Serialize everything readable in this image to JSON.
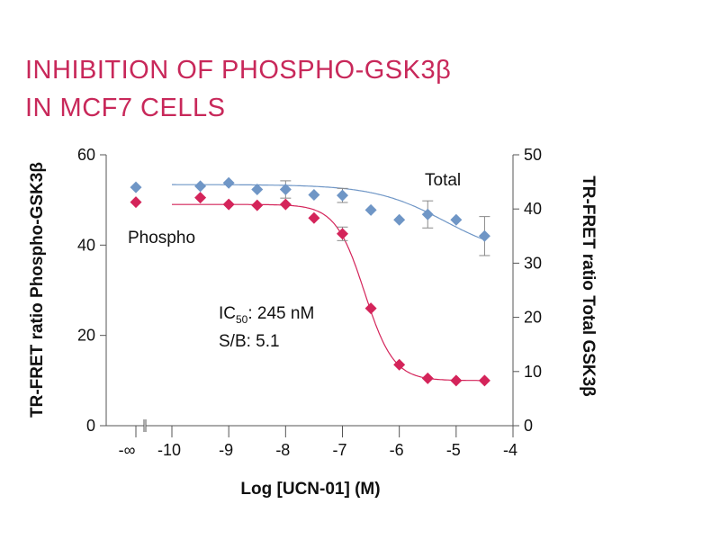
{
  "title_lines": [
    "INHIBITION OF PHOSPHO-GSK3β",
    "IN MCF7 CELLS"
  ],
  "chart_data": {
    "type": "scatter",
    "title": "INHIBITION OF PHOSPHO-GSK3β IN MCF7 CELLS",
    "xlabel": "Log [UCN-01] (M)",
    "ylabel": "TR-FRET ratio Phospho-GSK3β",
    "y2label": "TR-FRET ratio Total GSK3β",
    "xlim": [
      -10,
      -4
    ],
    "x_ticks": [
      -10,
      -9,
      -8,
      -7,
      -6,
      -5,
      -4
    ],
    "x_tick_labels": [
      "-10",
      "-9",
      "-8",
      "-7",
      "-6",
      "-5",
      "-4"
    ],
    "x_break_label": "-∞",
    "ylim": [
      0,
      60
    ],
    "y_ticks": [
      0,
      20,
      40,
      60
    ],
    "y_tick_labels": [
      "0",
      "20",
      "40",
      "60"
    ],
    "y2lim": [
      0,
      50
    ],
    "y2_ticks": [
      0,
      10,
      20,
      30,
      40,
      50
    ],
    "y2_tick_labels": [
      "0",
      "10",
      "20",
      "30",
      "40",
      "50"
    ],
    "series": [
      {
        "name": "Phospho",
        "axis": "left",
        "color": "#d4245a",
        "marker": "diamond",
        "zero_dose_value": 49.5,
        "x": [
          -9.5,
          -9,
          -8.5,
          -8,
          -7.5,
          -7,
          -6.5,
          -6,
          -5.5,
          -5,
          -4.5
        ],
        "values": [
          50.5,
          49,
          48.8,
          49,
          46,
          42.5,
          26,
          13.5,
          10.5,
          10,
          10
        ],
        "errors": [
          0,
          0,
          0,
          0,
          0,
          1.5,
          0,
          0,
          0,
          0,
          0
        ],
        "fit": {
          "top": 49,
          "bottom": 10,
          "log_ic50": -6.61,
          "hill": 1.7
        }
      },
      {
        "name": "Total",
        "axis": "right",
        "color": "#6f96c6",
        "marker": "diamond",
        "zero_dose_value": 44,
        "x": [
          -9.5,
          -9,
          -8.5,
          -8,
          -7.5,
          -7,
          -6.5,
          -6,
          -5.5,
          -5,
          -4.5
        ],
        "values": [
          44.2,
          44.8,
          43.6,
          43.6,
          42.6,
          42.5,
          39.8,
          38,
          39,
          38,
          35
        ],
        "errors": [
          0,
          0,
          0,
          1.6,
          0,
          1.3,
          0,
          0,
          2.5,
          0,
          3.6
        ],
        "fit": {
          "top": 44.5,
          "bottom": 31,
          "log_ic50": -5.2,
          "hill": 0.7
        }
      }
    ],
    "annotations": {
      "ic50_prefix": "IC",
      "ic50_sub": "50",
      "ic50_value": ": 245 nM",
      "sb": "S/B: 5.1"
    }
  }
}
